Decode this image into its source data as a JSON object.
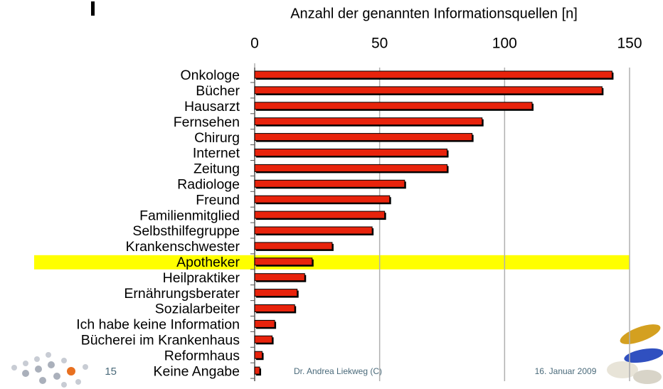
{
  "chart_data": {
    "type": "bar",
    "orientation": "horizontal",
    "title": "Anzahl der genannten Informationsquellen [n]",
    "categories": [
      "Onkologe",
      "Bücher",
      "Hausarzt",
      "Fernsehen",
      "Chirurg",
      "Internet",
      "Zeitung",
      "Radiologe",
      "Freund",
      "Familienmitglied",
      "Selbsthilfegruppe",
      "Krankenschwester",
      "Apotheker",
      "Heilpraktiker",
      "Ernährungsberater",
      "Sozialarbeiter",
      "Ich habe keine Information",
      "Bücherei im Krankenhaus",
      "Reformhaus",
      "Keine Angabe"
    ],
    "values": [
      143,
      139,
      111,
      91,
      87,
      77,
      77,
      60,
      54,
      52,
      47,
      31,
      23,
      20,
      17,
      16,
      8,
      7,
      3,
      2
    ],
    "color": "#e8230c",
    "highlight": "Apotheker",
    "highlight_color": "#ffff00",
    "xlim": [
      0,
      150
    ],
    "xticks": [
      0,
      50,
      100,
      150
    ],
    "grid": true
  },
  "footer": {
    "page": "15",
    "author": "Dr. Andrea Liekweg (C)",
    "date": "16. Januar 2009"
  }
}
